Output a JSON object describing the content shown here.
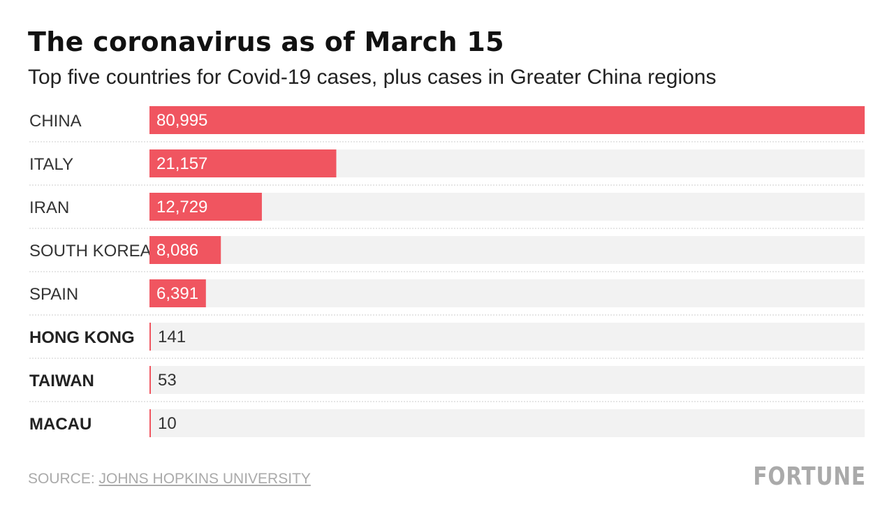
{
  "title": "The coronavirus as of March 15",
  "subtitle": "Top five countries for Covid-19 cases, plus cases in Greater China regions",
  "colors": {
    "bar": "#f05560",
    "track": "#f2f2f2",
    "divider": "#cccccc",
    "value_on_bar": "#ffffff",
    "value_off_bar": "#333333"
  },
  "chart_data": {
    "type": "bar",
    "orientation": "horizontal",
    "categories": [
      "CHINA",
      "ITALY",
      "IRAN",
      "SOUTH KOREA",
      "SPAIN",
      "HONG KONG",
      "TAIWAN",
      "MACAU"
    ],
    "values": [
      80995,
      21157,
      12729,
      8086,
      6391,
      141,
      53,
      10
    ],
    "value_labels": [
      "80,995",
      "21,157",
      "12,729",
      "8,086",
      "6,391",
      "141",
      "53",
      "10"
    ],
    "bold_categories": [
      "HONG KONG",
      "TAIWAN",
      "MACAU"
    ],
    "xlim": [
      0,
      80995
    ],
    "grid": false,
    "legend": "none"
  },
  "footer": {
    "source_prefix": "SOURCE: ",
    "source_name": "JOHNS HOPKINS UNIVERSITY",
    "brand": "FORTUNE"
  }
}
